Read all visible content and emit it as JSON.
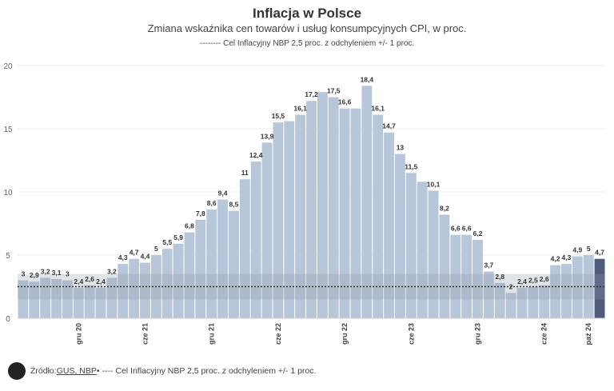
{
  "header": {
    "title": "Inflacja w Polsce",
    "subtitle": "Zmiana wskaźnika cen towarów i usług konsumpcyjnych CPI, w proc.",
    "note": "-------- Cel Inflacyjny NBP 2,5 proc. z odchyleniem +/- 1 proc."
  },
  "footer": {
    "logo_text": "tvn24",
    "source_prefix": "Źródło: ",
    "source_links": "GUS, NBP",
    "legend_text": " • ---- Cel Inflacyjny NBP 2,5 proc. z odchyleniem +/- 1 proc."
  },
  "chart_data": {
    "type": "bar",
    "title": "Inflacja w Polsce",
    "subtitle": "Zmiana wskaźnika cen towarów i usług konsumpcyjnych CPI, w proc.",
    "ylim": [
      0,
      20
    ],
    "yticks": [
      0,
      5,
      10,
      15,
      20
    ],
    "grid": true,
    "target": {
      "value": 2.5,
      "band": [
        1.5,
        3.5
      ]
    },
    "colors": {
      "bar": "#b8c6d9",
      "highlight": "#515c7c",
      "band": "#8f9aab",
      "target_line": "#333333"
    },
    "xtick_labels": [
      {
        "index": 5,
        "label": "gru 20"
      },
      {
        "index": 11,
        "label": "cze 21"
      },
      {
        "index": 17,
        "label": "gru 21"
      },
      {
        "index": 23,
        "label": "cze 22"
      },
      {
        "index": 29,
        "label": "gru 22"
      },
      {
        "index": 35,
        "label": "cze 23"
      },
      {
        "index": 41,
        "label": "gru 23"
      },
      {
        "index": 47,
        "label": "cze 24"
      },
      {
        "index": 51,
        "label": "paź 24"
      }
    ],
    "values": [
      3.0,
      2.9,
      3.2,
      3.1,
      3.0,
      2.4,
      2.6,
      2.4,
      3.2,
      4.3,
      4.7,
      4.4,
      5.0,
      5.5,
      5.9,
      6.8,
      7.8,
      8.6,
      9.4,
      8.5,
      11.0,
      12.4,
      13.9,
      15.5,
      15.6,
      16.1,
      17.2,
      17.9,
      17.5,
      16.6,
      16.6,
      18.4,
      16.1,
      14.7,
      13.0,
      11.5,
      10.8,
      10.1,
      8.2,
      6.6,
      6.6,
      6.2,
      3.7,
      2.8,
      2.0,
      2.4,
      2.5,
      2.6,
      4.2,
      4.3,
      4.9,
      5.0,
      4.7
    ],
    "data_labels": [
      "3",
      "2,9",
      "3,2",
      "3,1",
      "3",
      "2,4",
      "2,6",
      "2,4",
      "3,2",
      "4,3",
      "4,7",
      "4,4",
      "5",
      "5,5",
      "5,9",
      "6,8",
      "7,8",
      "8,6",
      "9,4",
      "8,5",
      "11",
      "12,4",
      "13,9",
      "15,5",
      null,
      "16,1",
      "17,2",
      null,
      "17,5",
      "16,6",
      null,
      "18,4",
      "16,1",
      "14,7",
      "13",
      "11,5",
      null,
      "10,1",
      "8,2",
      "6,6",
      "6,6",
      "6,2",
      "3,7",
      "2,8",
      "2",
      "2,4",
      "2,5",
      "2,6",
      "4,2",
      "4,3",
      "4,9",
      "5",
      "4,7"
    ],
    "highlight_index": 52
  }
}
